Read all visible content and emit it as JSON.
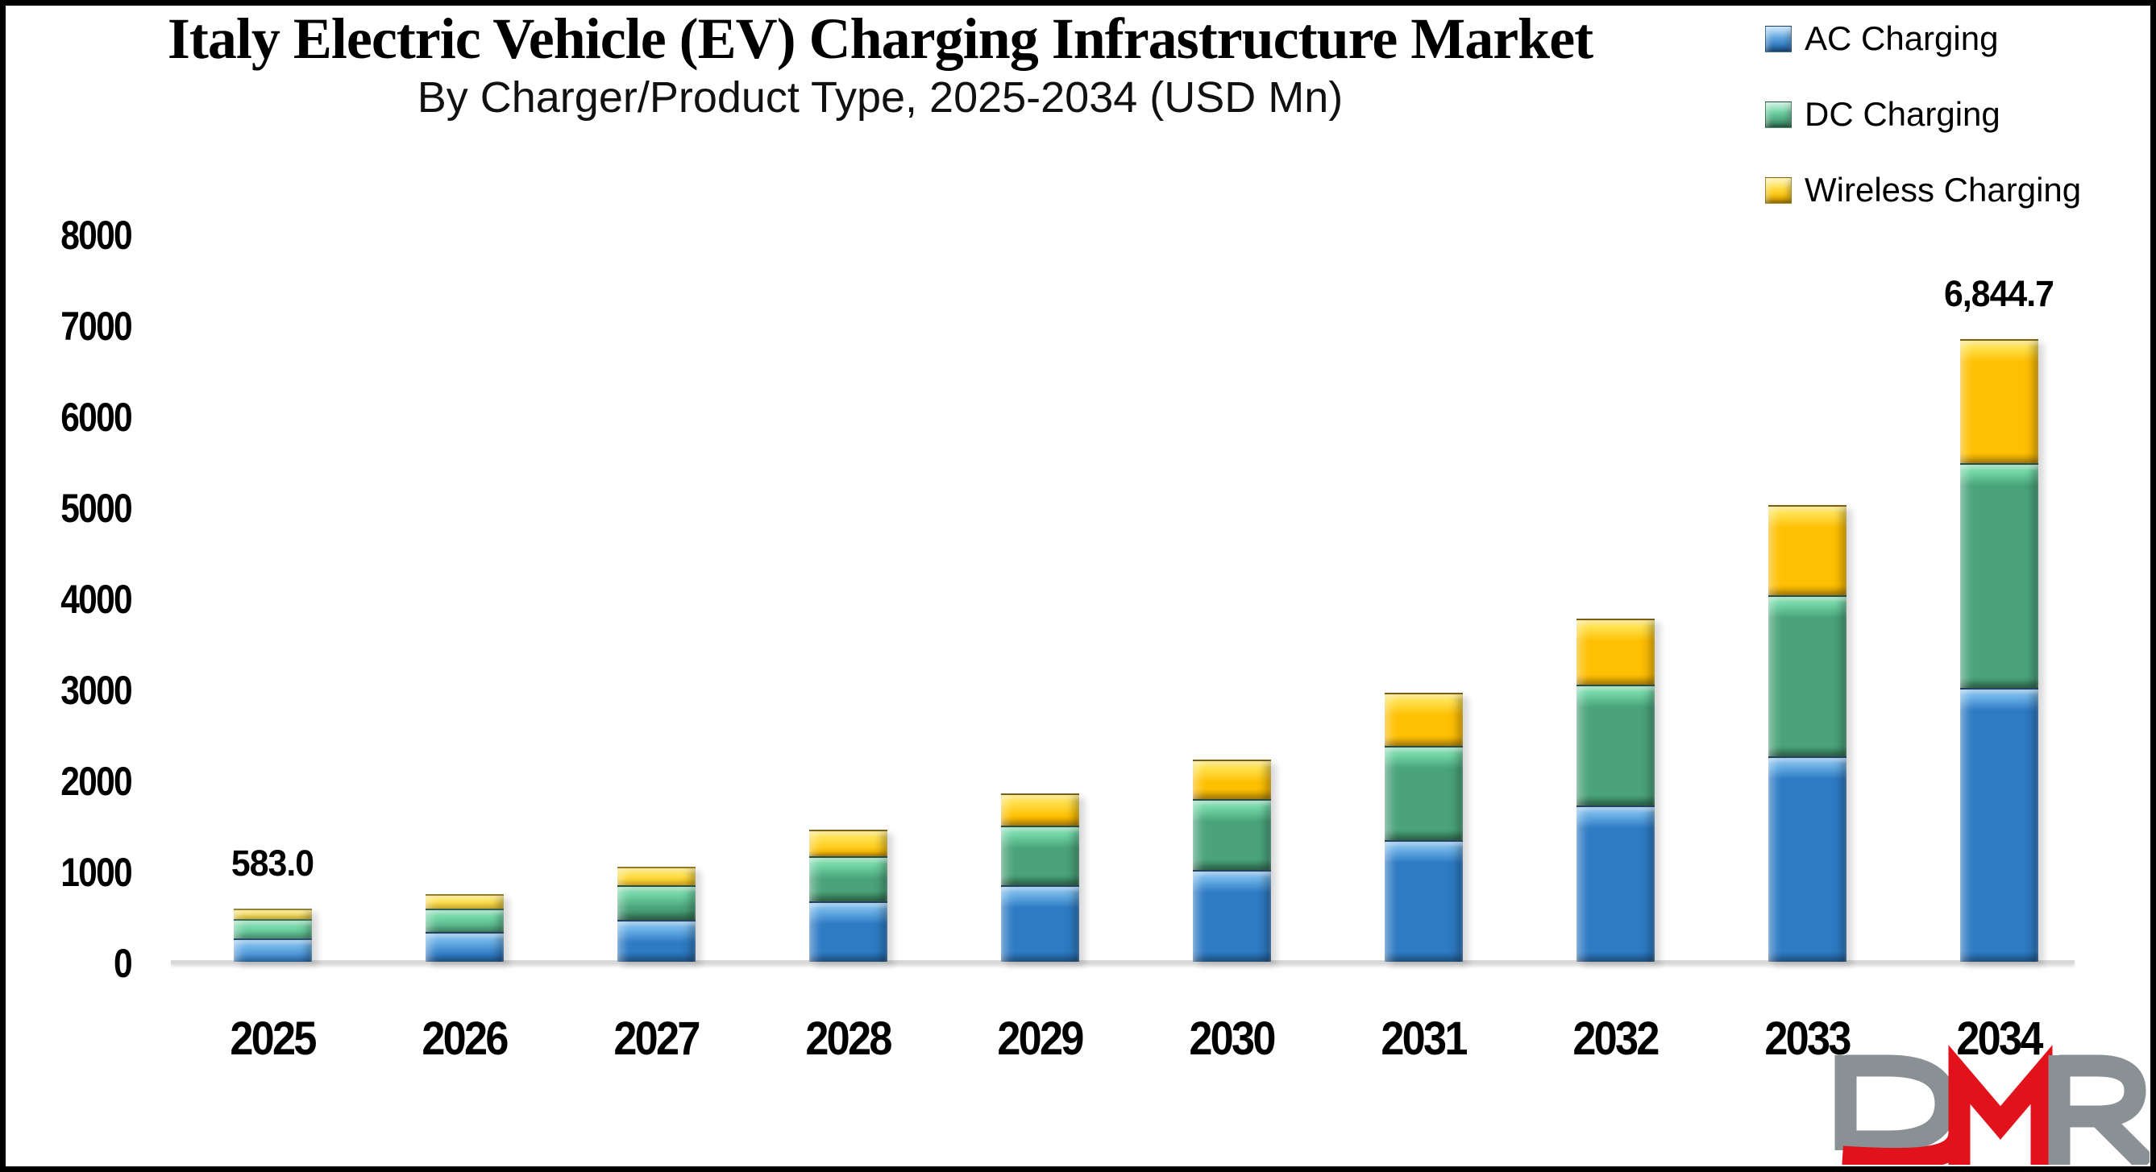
{
  "header": {
    "title": "Italy Electric Vehicle (EV) Charging Infrastructure Market",
    "subtitle": "By Charger/Product Type, 2025-2034 (USD Mn)"
  },
  "chart_data": {
    "type": "bar",
    "stacked": true,
    "title": "Italy Electric Vehicle (EV) Charging Infrastructure Market",
    "subtitle": "By Charger/Product Type, 2025-2034 (USD Mn)",
    "xlabel": "",
    "ylabel": "",
    "unit": "USD Mn",
    "categories": [
      "2025",
      "2026",
      "2027",
      "2028",
      "2029",
      "2030",
      "2031",
      "2032",
      "2033",
      "2034"
    ],
    "series": [
      {
        "key": "ac",
        "name": "AC Charging",
        "color": "#2E7BC4",
        "light": "#6FB3E8",
        "dark": "#1F5B97",
        "values": [
          260.7,
          323.0,
          456.8,
          662.9,
          836.9,
          1005.6,
          1337.2,
          1715.1,
          2253.9,
          3006.2
        ]
      },
      {
        "key": "dc",
        "name": "DC Charging",
        "color": "#4AA37A",
        "light": "#72D6A6",
        "dark": "#2E7050",
        "values": [
          205.7,
          263.9,
          387.9,
          498.6,
          661.9,
          784.1,
          1033.9,
          1331.1,
          1770.4,
          2475.7
        ]
      },
      {
        "key": "wireless",
        "name": "Wireless Charging",
        "color": "#FFC003",
        "light": "#FFE14D",
        "dark": "#C89300",
        "values": [
          116.6,
          158.1,
          200.3,
          288.5,
          349.2,
          429.3,
          588.9,
          723.8,
          996.7,
          1362.8
        ]
      }
    ],
    "totals": [
      583.0,
      745.0,
      1045.0,
      1450.0,
      1848.0,
      2219.0,
      2960.0,
      3770.0,
      5021.0,
      6844.7
    ],
    "data_labels": [
      {
        "category": "2025",
        "text": "583.0"
      },
      {
        "category": "2034",
        "text": "6,844.7"
      }
    ],
    "ylim": [
      0,
      8000
    ],
    "ytick_step": 1000,
    "yticks": [
      "0",
      "1000",
      "2000",
      "3000",
      "4000",
      "5000",
      "6000",
      "7000",
      "8000"
    ],
    "grid": false,
    "legend_position": "top-right",
    "axis_line_color": "#D8D8D8"
  },
  "logo": {
    "text": "DMR",
    "gray": "#8A9194",
    "red": "#E1121B"
  }
}
